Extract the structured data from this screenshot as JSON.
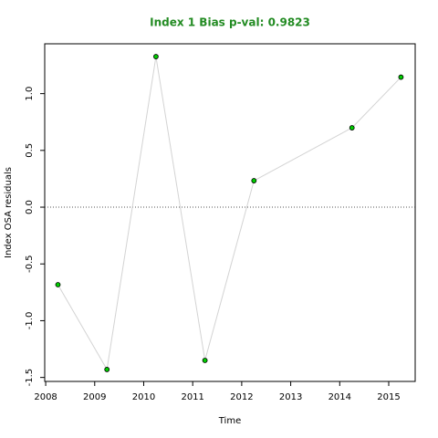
{
  "chart_data": {
    "type": "line",
    "title": "Index 1 Bias p-val: 0.9823",
    "title_color": "#228b22",
    "x_label": "Time",
    "y_label": "Index OSA residuals",
    "x": [
      2008.25,
      2009.25,
      2010.25,
      2011.25,
      2012.25,
      2014.25,
      2015.25
    ],
    "series": [
      {
        "values": [
          -0.683,
          -1.43,
          1.326,
          -1.35,
          0.233,
          0.699,
          1.145
        ],
        "color": "#d3d3d3",
        "marker_color": "#00cd00"
      }
    ],
    "xlim": [
      2007.98,
      2015.54
    ],
    "xticks": [
      2008,
      2009,
      2010,
      2011,
      2012,
      2013,
      2014,
      2015
    ],
    "ylim": [
      -1.535,
      1.439
    ],
    "yticks": [
      {
        "value": -1.5,
        "label": "-1.5"
      },
      {
        "value": -1.0,
        "label": "-1.0"
      },
      -0.5,
      {
        "value": 0.0,
        "label": "0.0"
      },
      0.5,
      {
        "value": 1.0,
        "label": "1.0"
      }
    ],
    "reference_line": 0,
    "grid": false
  }
}
